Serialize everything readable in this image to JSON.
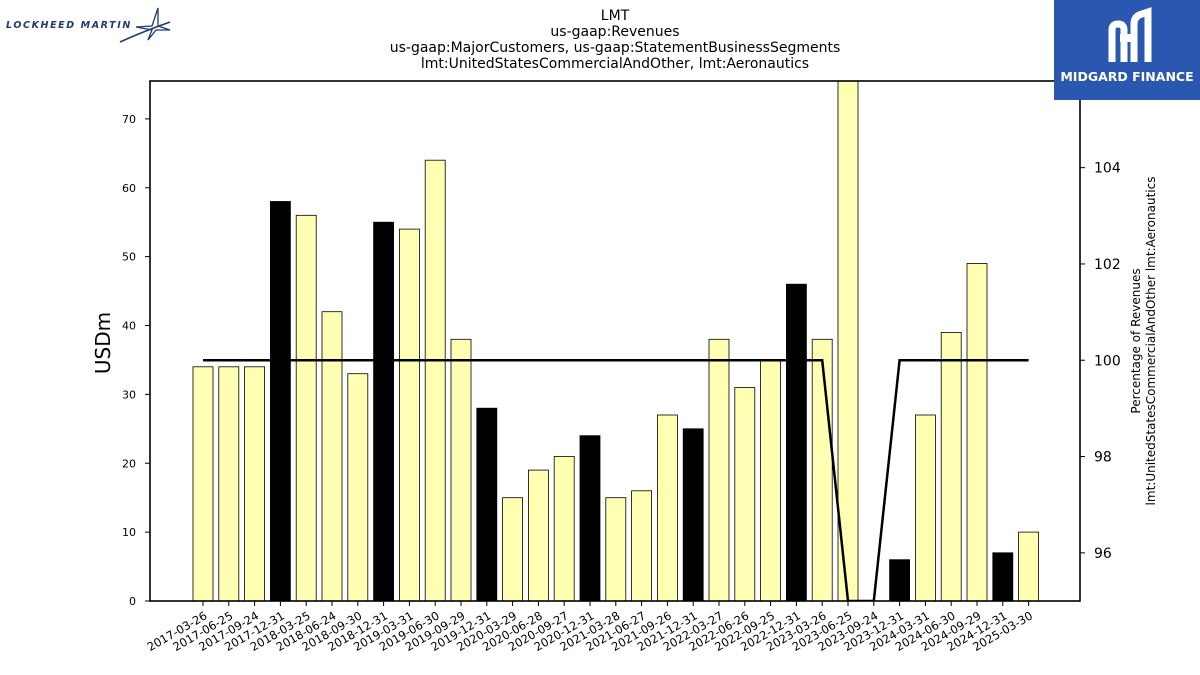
{
  "header": {
    "title_lines": [
      "LMT",
      "us-gaap:Revenues",
      "us-gaap:MajorCustomers, us-gaap:StatementBusinessSegments",
      "lmt:UnitedStatesCommercialAndOther, lmt:Aeronautics"
    ]
  },
  "logos": {
    "left_text": "LOCKHEED MARTIN",
    "right_text": "MIDGARD FINANCE",
    "right_bg": "#2a58b0"
  },
  "chart_data": {
    "type": "bar",
    "ylabel": "USDm",
    "y2label": "Percentage of Revenues\nlmt:UnitedStatesCommercialAndOther lmt:Aeronautics",
    "ylim": [
      0,
      75.5
    ],
    "y2lim": [
      95,
      105.8
    ],
    "yticks": [
      0,
      10,
      20,
      30,
      40,
      50,
      60,
      70
    ],
    "y2ticks": [
      96,
      98,
      100,
      102,
      104
    ],
    "grid": false,
    "categories": [
      "2017-03-26",
      "2017-06-25",
      "2017-09-24",
      "2017-12-31",
      "2018-03-25",
      "2018-06-24",
      "2018-09-30",
      "2018-12-31",
      "2019-03-31",
      "2019-06-30",
      "2019-09-29",
      "2019-12-31",
      "2020-03-29",
      "2020-06-28",
      "2020-09-27",
      "2020-12-31",
      "2021-03-28",
      "2021-06-27",
      "2021-09-26",
      "2021-12-31",
      "2022-03-27",
      "2022-06-26",
      "2022-09-25",
      "2022-12-31",
      "2023-03-26",
      "2023-06-25",
      "2023-09-24",
      "2023-12-31",
      "2024-03-31",
      "2024-06-30",
      "2024-09-29",
      "2024-12-31",
      "2025-03-30"
    ],
    "values": [
      34,
      34,
      34,
      58,
      56,
      42,
      33,
      55,
      54,
      64,
      38,
      28,
      15,
      19,
      21,
      24,
      15,
      16,
      27,
      25,
      38,
      31,
      35,
      46,
      38,
      76,
      null,
      6,
      27,
      39,
      49,
      7,
      10
    ],
    "year_end": [
      false,
      false,
      false,
      true,
      false,
      false,
      false,
      true,
      false,
      false,
      false,
      true,
      false,
      false,
      false,
      true,
      false,
      false,
      false,
      true,
      false,
      false,
      false,
      true,
      false,
      false,
      false,
      true,
      false,
      false,
      false,
      true,
      false
    ],
    "percentage": [
      100,
      100,
      100,
      100,
      100,
      100,
      100,
      100,
      100,
      100,
      100,
      100,
      100,
      100,
      100,
      100,
      100,
      100,
      100,
      100,
      100,
      100,
      100,
      100,
      100,
      95,
      95,
      100,
      100,
      100,
      100,
      100,
      100
    ],
    "colors": {
      "quarter_bar": "#ffffb3",
      "year_end_bar": "#000000",
      "line": "#000000"
    }
  }
}
